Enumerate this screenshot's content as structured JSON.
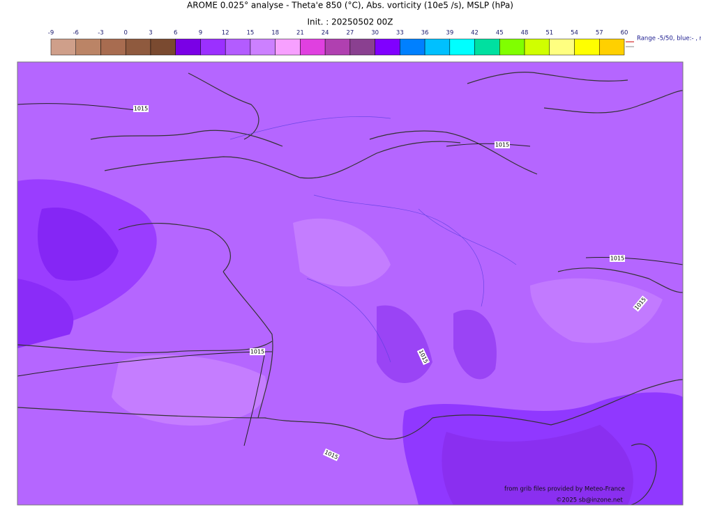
{
  "header": {
    "title": "AROME 0.025° analyse - Theta'e 850 (°C), Abs. vorticity (10e5 /s), MSLP (hPa)",
    "init": "Init. : 20250502 00Z"
  },
  "colorbar": {
    "ticks": [
      -9,
      -6,
      -3,
      0,
      3,
      6,
      9,
      12,
      15,
      18,
      21,
      24,
      27,
      30,
      33,
      36,
      39,
      42,
      45,
      48,
      51,
      54,
      57,
      60
    ],
    "colors": [
      "#cf9f8a",
      "#bb8466",
      "#a86c50",
      "#8f5a3e",
      "#7a4a30",
      "#7a00e6",
      "#9b30ff",
      "#b35cff",
      "#cc80ff",
      "#f7a0ff",
      "#e040e0",
      "#b040b0",
      "#8a4090",
      "#8000ff",
      "#0080ff",
      "#00c0ff",
      "#00ffff",
      "#00e0a0",
      "#80ff00",
      "#d0ff00",
      "#ffff80",
      "#ffff00",
      "#ffd000"
    ],
    "range_note": "Range -5/50, blue:- , r"
  },
  "isobar_labels": [
    "1015",
    "1015",
    "1015",
    "1015",
    "1015",
    "1015",
    "1015"
  ],
  "credits": {
    "source": "from grib files provided by Meteo-France",
    "copyright": "©2025 sb@inzone.net"
  }
}
